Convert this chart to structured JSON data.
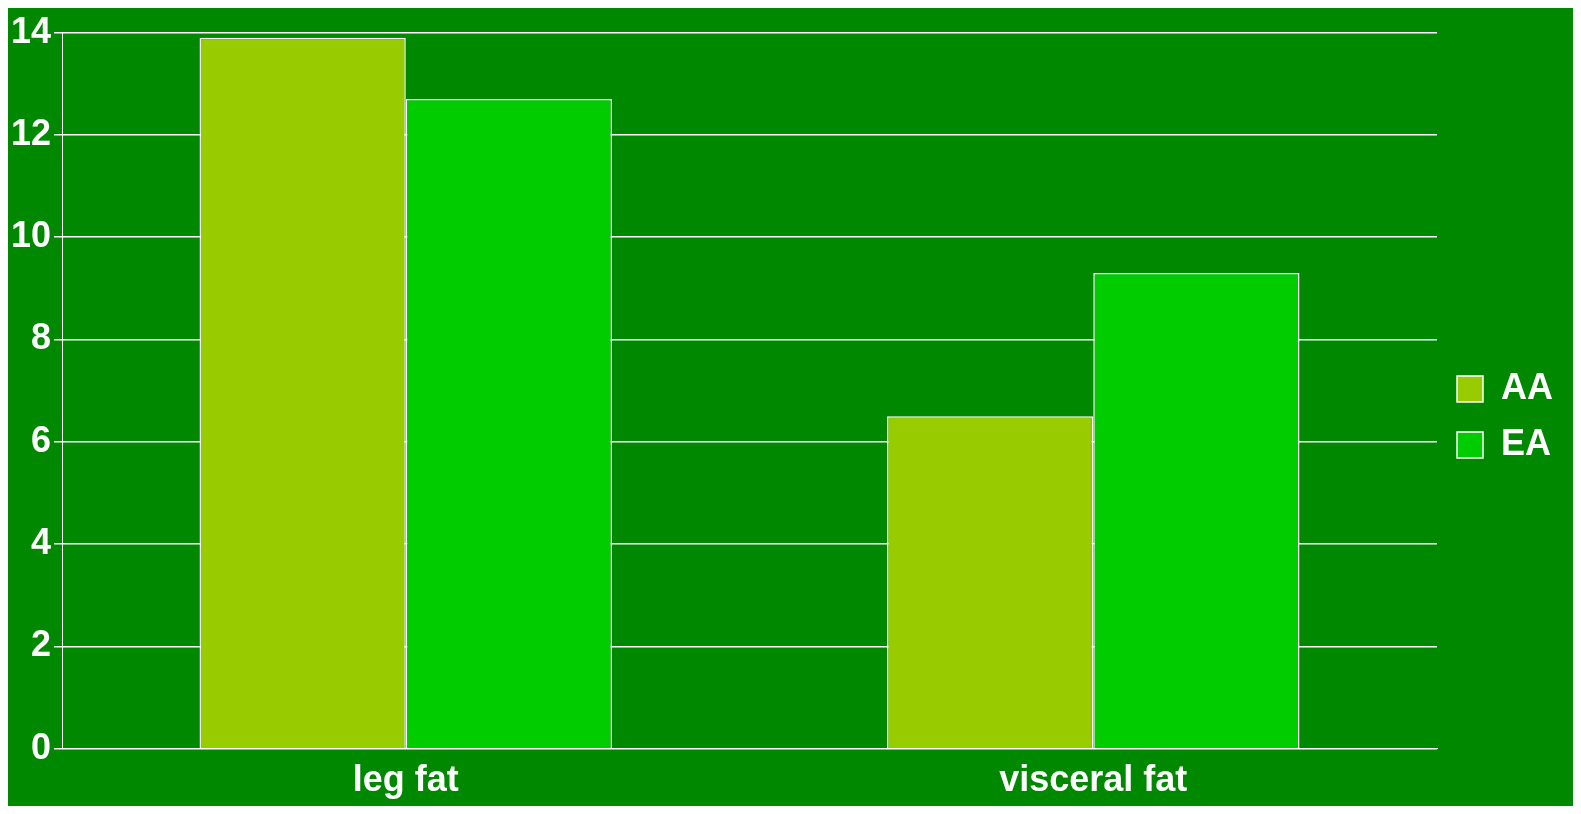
{
  "chart_data": {
    "type": "bar",
    "categories": [
      "leg fat",
      "visceral fat"
    ],
    "series": [
      {
        "name": "AA",
        "color": "#99cc00",
        "values": [
          13.9,
          6.5
        ]
      },
      {
        "name": "EA",
        "color": "#00cc00",
        "values": [
          12.7,
          9.3
        ]
      }
    ],
    "ylim": [
      0,
      14
    ],
    "yticks": [
      0,
      2,
      4,
      6,
      8,
      10,
      12,
      14
    ],
    "grid": "y",
    "legend": "right"
  }
}
